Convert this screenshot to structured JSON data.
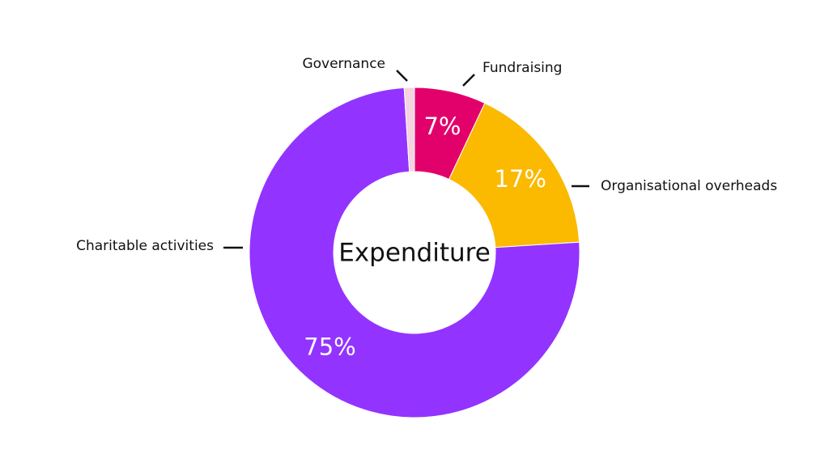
{
  "chart_data": {
    "type": "pie",
    "title": "Expenditure",
    "categories": [
      "Fundraising",
      "Organisational overheads",
      "Charitable activities",
      "Governance"
    ],
    "values": [
      7,
      17,
      75,
      1
    ],
    "value_labels": [
      "7%",
      "17%",
      "75%",
      null
    ],
    "colors": [
      "#e2006a",
      "#fbb900",
      "#9333ff",
      "#f5d3e1"
    ]
  }
}
